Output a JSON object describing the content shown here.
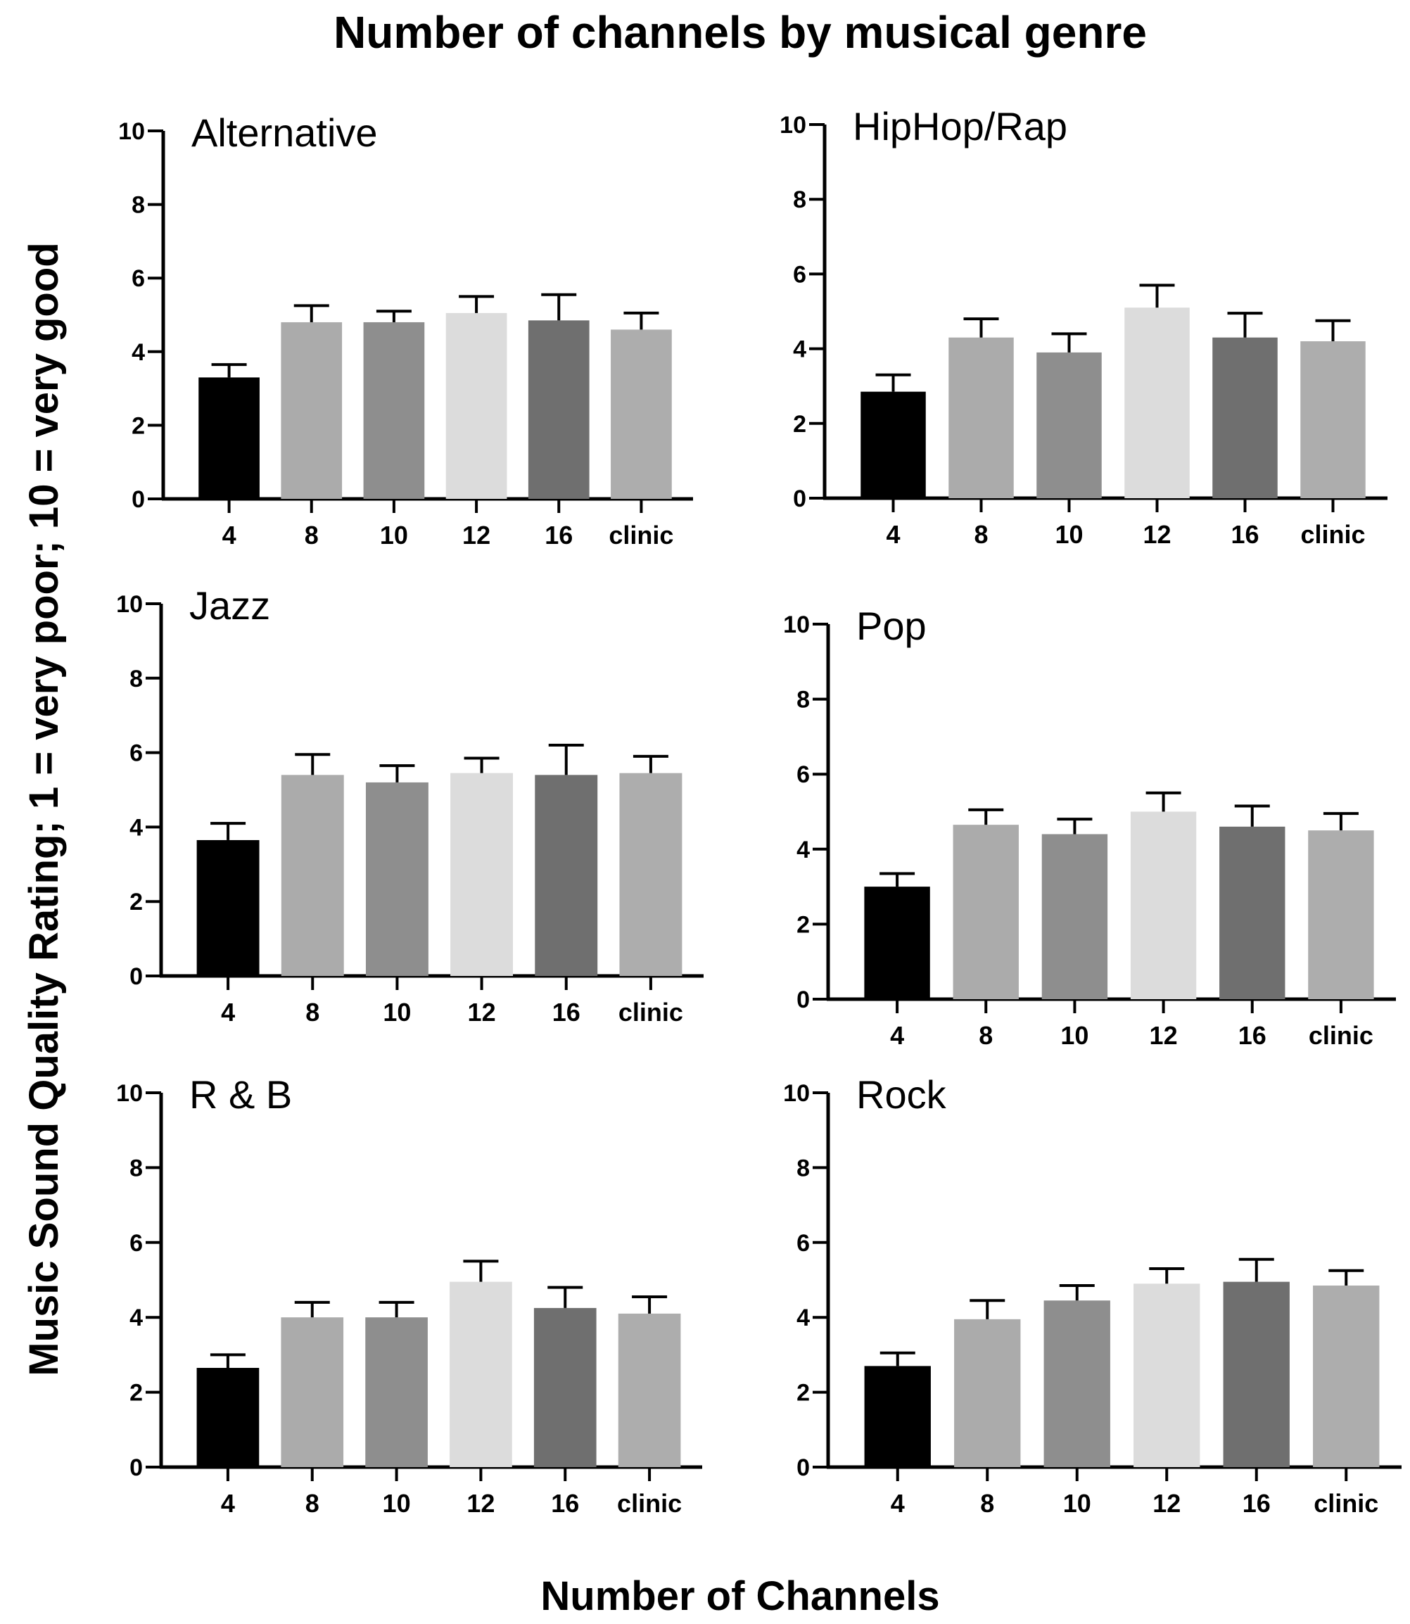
{
  "chart_data": {
    "type": "bar",
    "title": "Number of channels by musical genre",
    "xlabel": "Number of Channels",
    "ylabel": "Music Sound Quality Rating; 1 = very poor; 10 = very good",
    "categories": [
      "4",
      "8",
      "10",
      "12",
      "16",
      "clinic"
    ],
    "bar_colors": [
      "#000000",
      "#ababab",
      "#8e8e8e",
      "#dcdcdc",
      "#6f6f6f",
      "#adadad"
    ],
    "ylim": [
      0,
      10
    ],
    "yticks": [
      "0",
      "2",
      "4",
      "6",
      "8",
      "10"
    ],
    "panels": [
      {
        "title": "Alternative",
        "values": [
          3.3,
          4.8,
          4.8,
          5.05,
          4.85,
          4.6
        ],
        "errors": [
          0.35,
          0.45,
          0.3,
          0.45,
          0.7,
          0.45
        ]
      },
      {
        "title": "HipHop/Rap",
        "values": [
          2.85,
          4.3,
          3.9,
          5.1,
          4.3,
          4.2
        ],
        "errors": [
          0.45,
          0.5,
          0.5,
          0.6,
          0.65,
          0.55
        ]
      },
      {
        "title": "Jazz",
        "values": [
          3.65,
          5.4,
          5.2,
          5.45,
          5.4,
          5.45
        ],
        "errors": [
          0.45,
          0.55,
          0.45,
          0.4,
          0.8,
          0.45
        ]
      },
      {
        "title": "Pop",
        "values": [
          3.0,
          4.65,
          4.4,
          5.0,
          4.6,
          4.5
        ],
        "errors": [
          0.35,
          0.4,
          0.4,
          0.5,
          0.55,
          0.45
        ]
      },
      {
        "title": "R & B",
        "values": [
          2.65,
          4.0,
          4.0,
          4.95,
          4.25,
          4.1
        ],
        "errors": [
          0.35,
          0.4,
          0.4,
          0.55,
          0.55,
          0.45
        ]
      },
      {
        "title": "Rock",
        "values": [
          2.7,
          3.95,
          4.45,
          4.9,
          4.95,
          4.85
        ],
        "errors": [
          0.35,
          0.5,
          0.4,
          0.4,
          0.6,
          0.4
        ]
      }
    ]
  }
}
